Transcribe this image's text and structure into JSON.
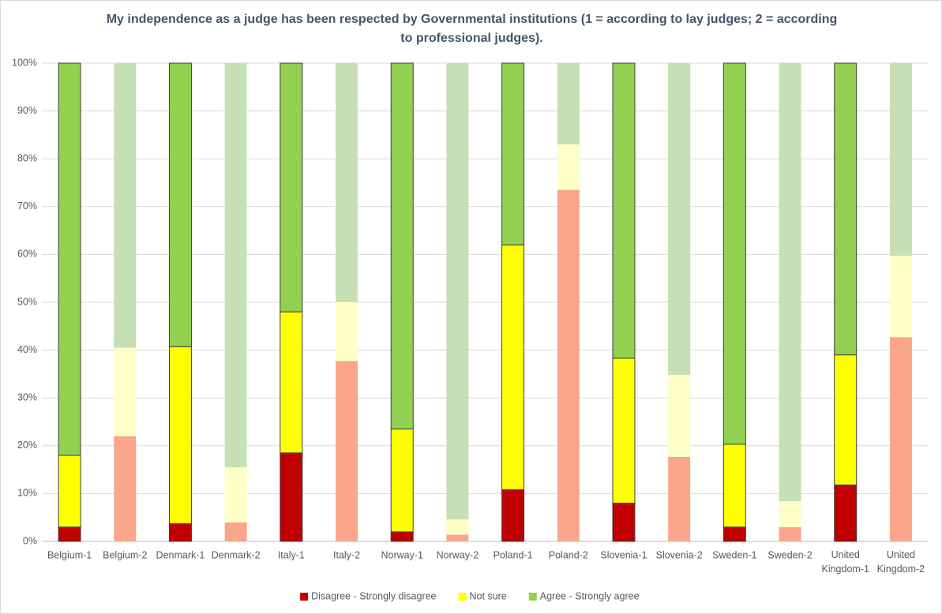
{
  "chart_data": {
    "type": "stacked_bar",
    "title": "My independence as a judge has been respected by Governmental institutions (1 = according to lay judges; 2 = according to professional judges).",
    "categories": [
      "Belgium-1",
      "Belgium-2",
      "Denmark-1",
      "Denmark-2",
      "Italy-1",
      "Italy-2",
      "Norway-1",
      "Norway-2",
      "Poland-1",
      "Poland-2",
      "Slovenia-1",
      "Slovenia-2",
      "Sweden-1",
      "Sweden-2",
      "United Kingdom-1",
      "United Kingdom-2"
    ],
    "series": [
      {
        "name": "Disagree - Strongly disagree",
        "color": "#c00000",
        "colors": [
          "#c00000",
          "#f9a68a",
          "#c00000",
          "#f9a68a",
          "#c00000",
          "#f9a68a",
          "#c00000",
          "#f9a68a",
          "#c00000",
          "#f9a68a",
          "#c00000",
          "#f9a68a",
          "#c00000",
          "#f9a68a",
          "#c00000",
          "#f9a68a"
        ],
        "values": [
          3,
          22,
          3.7,
          4,
          18.5,
          37.7,
          2,
          1.4,
          10.8,
          73.5,
          8,
          17.7,
          3,
          3,
          11.8,
          42.7
        ]
      },
      {
        "name": "Not sure",
        "color": "#ffff00",
        "colors": [
          "#ffff00",
          "#ffffc8",
          "#ffff00",
          "#ffffc8",
          "#ffff00",
          "#ffffc8",
          "#ffff00",
          "#ffffc8",
          "#ffff00",
          "#ffffc8",
          "#ffff00",
          "#ffffc8",
          "#ffff00",
          "#ffffc8",
          "#ffff00",
          "#ffffc8"
        ],
        "values": [
          15,
          18.5,
          37,
          11.5,
          29.5,
          12.3,
          21.5,
          3.2,
          51.2,
          9.5,
          30.3,
          17.1,
          17.3,
          5.4,
          27.2,
          17
        ]
      },
      {
        "name": "Agree - Strongly agree",
        "color": "#92d050",
        "colors": [
          "#92d050",
          "#c5e0b4",
          "#92d050",
          "#c5e0b4",
          "#92d050",
          "#c5e0b4",
          "#92d050",
          "#c5e0b4",
          "#92d050",
          "#c5e0b4",
          "#92d050",
          "#c5e0b4",
          "#92d050",
          "#c5e0b4",
          "#92d050",
          "#c5e0b4"
        ],
        "values": [
          82,
          59.5,
          59.3,
          84.5,
          52,
          50,
          76.5,
          95.4,
          38,
          17,
          61.7,
          65.2,
          79.7,
          91.6,
          61,
          40.3
        ]
      }
    ],
    "edgecolors": [
      "#404040",
      null,
      "#404040",
      null,
      "#404040",
      null,
      "#404040",
      null,
      "#404040",
      null,
      "#404040",
      null,
      "#404040",
      null,
      "#404040",
      null
    ],
    "ylim": [
      0,
      100
    ],
    "yticks": [
      {
        "value": 0,
        "label": "0%"
      },
      {
        "value": 10,
        "label": "10%"
      },
      {
        "value": 20,
        "label": "20%"
      },
      {
        "value": 30,
        "label": "30%"
      },
      {
        "value": 40,
        "label": "40%"
      },
      {
        "value": 50,
        "label": "50%"
      },
      {
        "value": 60,
        "label": "60%"
      },
      {
        "value": 70,
        "label": "70%"
      },
      {
        "value": 80,
        "label": "80%"
      },
      {
        "value": 90,
        "label": "90%"
      },
      {
        "value": 100,
        "label": "100%"
      }
    ],
    "grid": true,
    "legend": "bottom"
  }
}
